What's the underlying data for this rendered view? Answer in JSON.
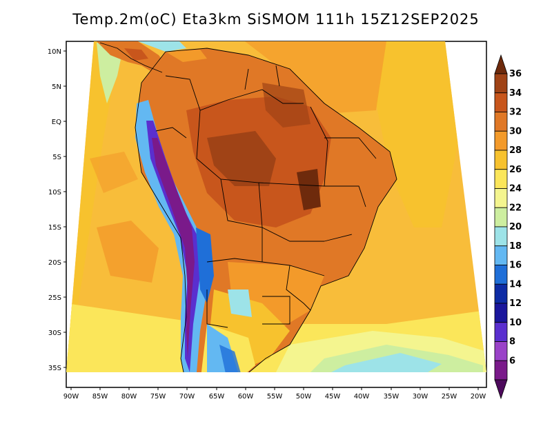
{
  "title": "Temp.2m(oC) Eta3km SiSMOM 111h 15Z12SEP2025",
  "map": {
    "lat_labels": [
      "10N",
      "5N",
      "EQ",
      "5S",
      "10S",
      "15S",
      "20S",
      "25S",
      "30S",
      "35S"
    ],
    "lon_labels": [
      "90W",
      "85W",
      "80W",
      "75W",
      "70W",
      "65W",
      "60W",
      "55W",
      "50W",
      "45W",
      "40W",
      "35W",
      "30W",
      "25W",
      "20W"
    ]
  },
  "colorbar": {
    "labels": [
      "36",
      "34",
      "32",
      "30",
      "28",
      "26",
      "24",
      "22",
      "20",
      "18",
      "16",
      "14",
      "12",
      "10",
      "8",
      "6"
    ],
    "colors": [
      "#6e2a0c",
      "#a04316",
      "#c8561c",
      "#e07826",
      "#f39a2a",
      "#f7c22e",
      "#fbe65a",
      "#f4f58f",
      "#cdeea0",
      "#9de3e8",
      "#63b8f2",
      "#1f6fd8",
      "#0d2ba4",
      "#1a169c",
      "#5a2fcf",
      "#9a42c8",
      "#7a1a8a",
      "#4d0a5c"
    ]
  }
}
